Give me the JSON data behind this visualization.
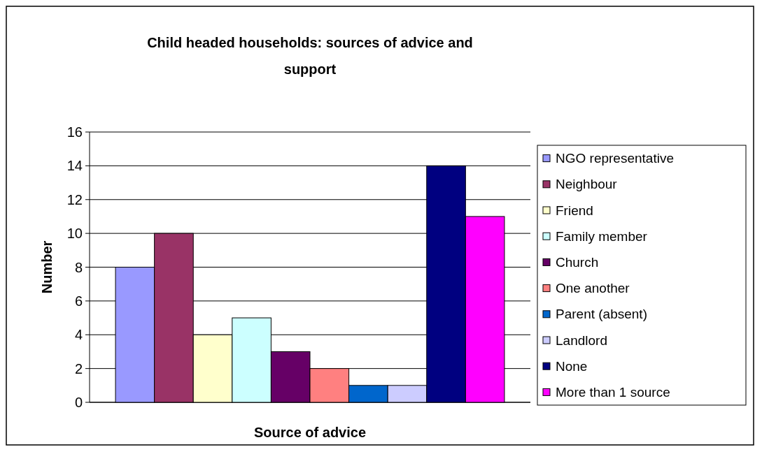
{
  "chart_data": {
    "type": "bar",
    "title": "Child headed households: sources of advice and support",
    "xlabel": "Source of advice",
    "ylabel": "Number",
    "categories": [
      null
    ],
    "series": [
      {
        "name": "NGO representative",
        "color": "#9999ff",
        "values": [
          8
        ]
      },
      {
        "name": "Neighbour",
        "color": "#993366",
        "values": [
          10
        ]
      },
      {
        "name": "Friend",
        "color": "#ffffcc",
        "values": [
          4
        ]
      },
      {
        "name": "Family member",
        "color": "#ccffff",
        "values": [
          5
        ]
      },
      {
        "name": "Church",
        "color": "#660066",
        "values": [
          3
        ]
      },
      {
        "name": "One another",
        "color": "#ff8080",
        "values": [
          2
        ]
      },
      {
        "name": "Parent (absent)",
        "color": "#0066cc",
        "values": [
          1
        ]
      },
      {
        "name": "Landlord",
        "color": "#ccccff",
        "values": [
          1
        ]
      },
      {
        "name": "None",
        "color": "#000080",
        "values": [
          14
        ]
      },
      {
        "name": "More than 1 source",
        "color": "#ff00ff",
        "values": [
          11
        ]
      }
    ],
    "ylim": [
      0,
      16
    ],
    "yticks": [
      0,
      2,
      4,
      6,
      8,
      10,
      12,
      14,
      16
    ],
    "grid": "y",
    "legend": "right"
  }
}
